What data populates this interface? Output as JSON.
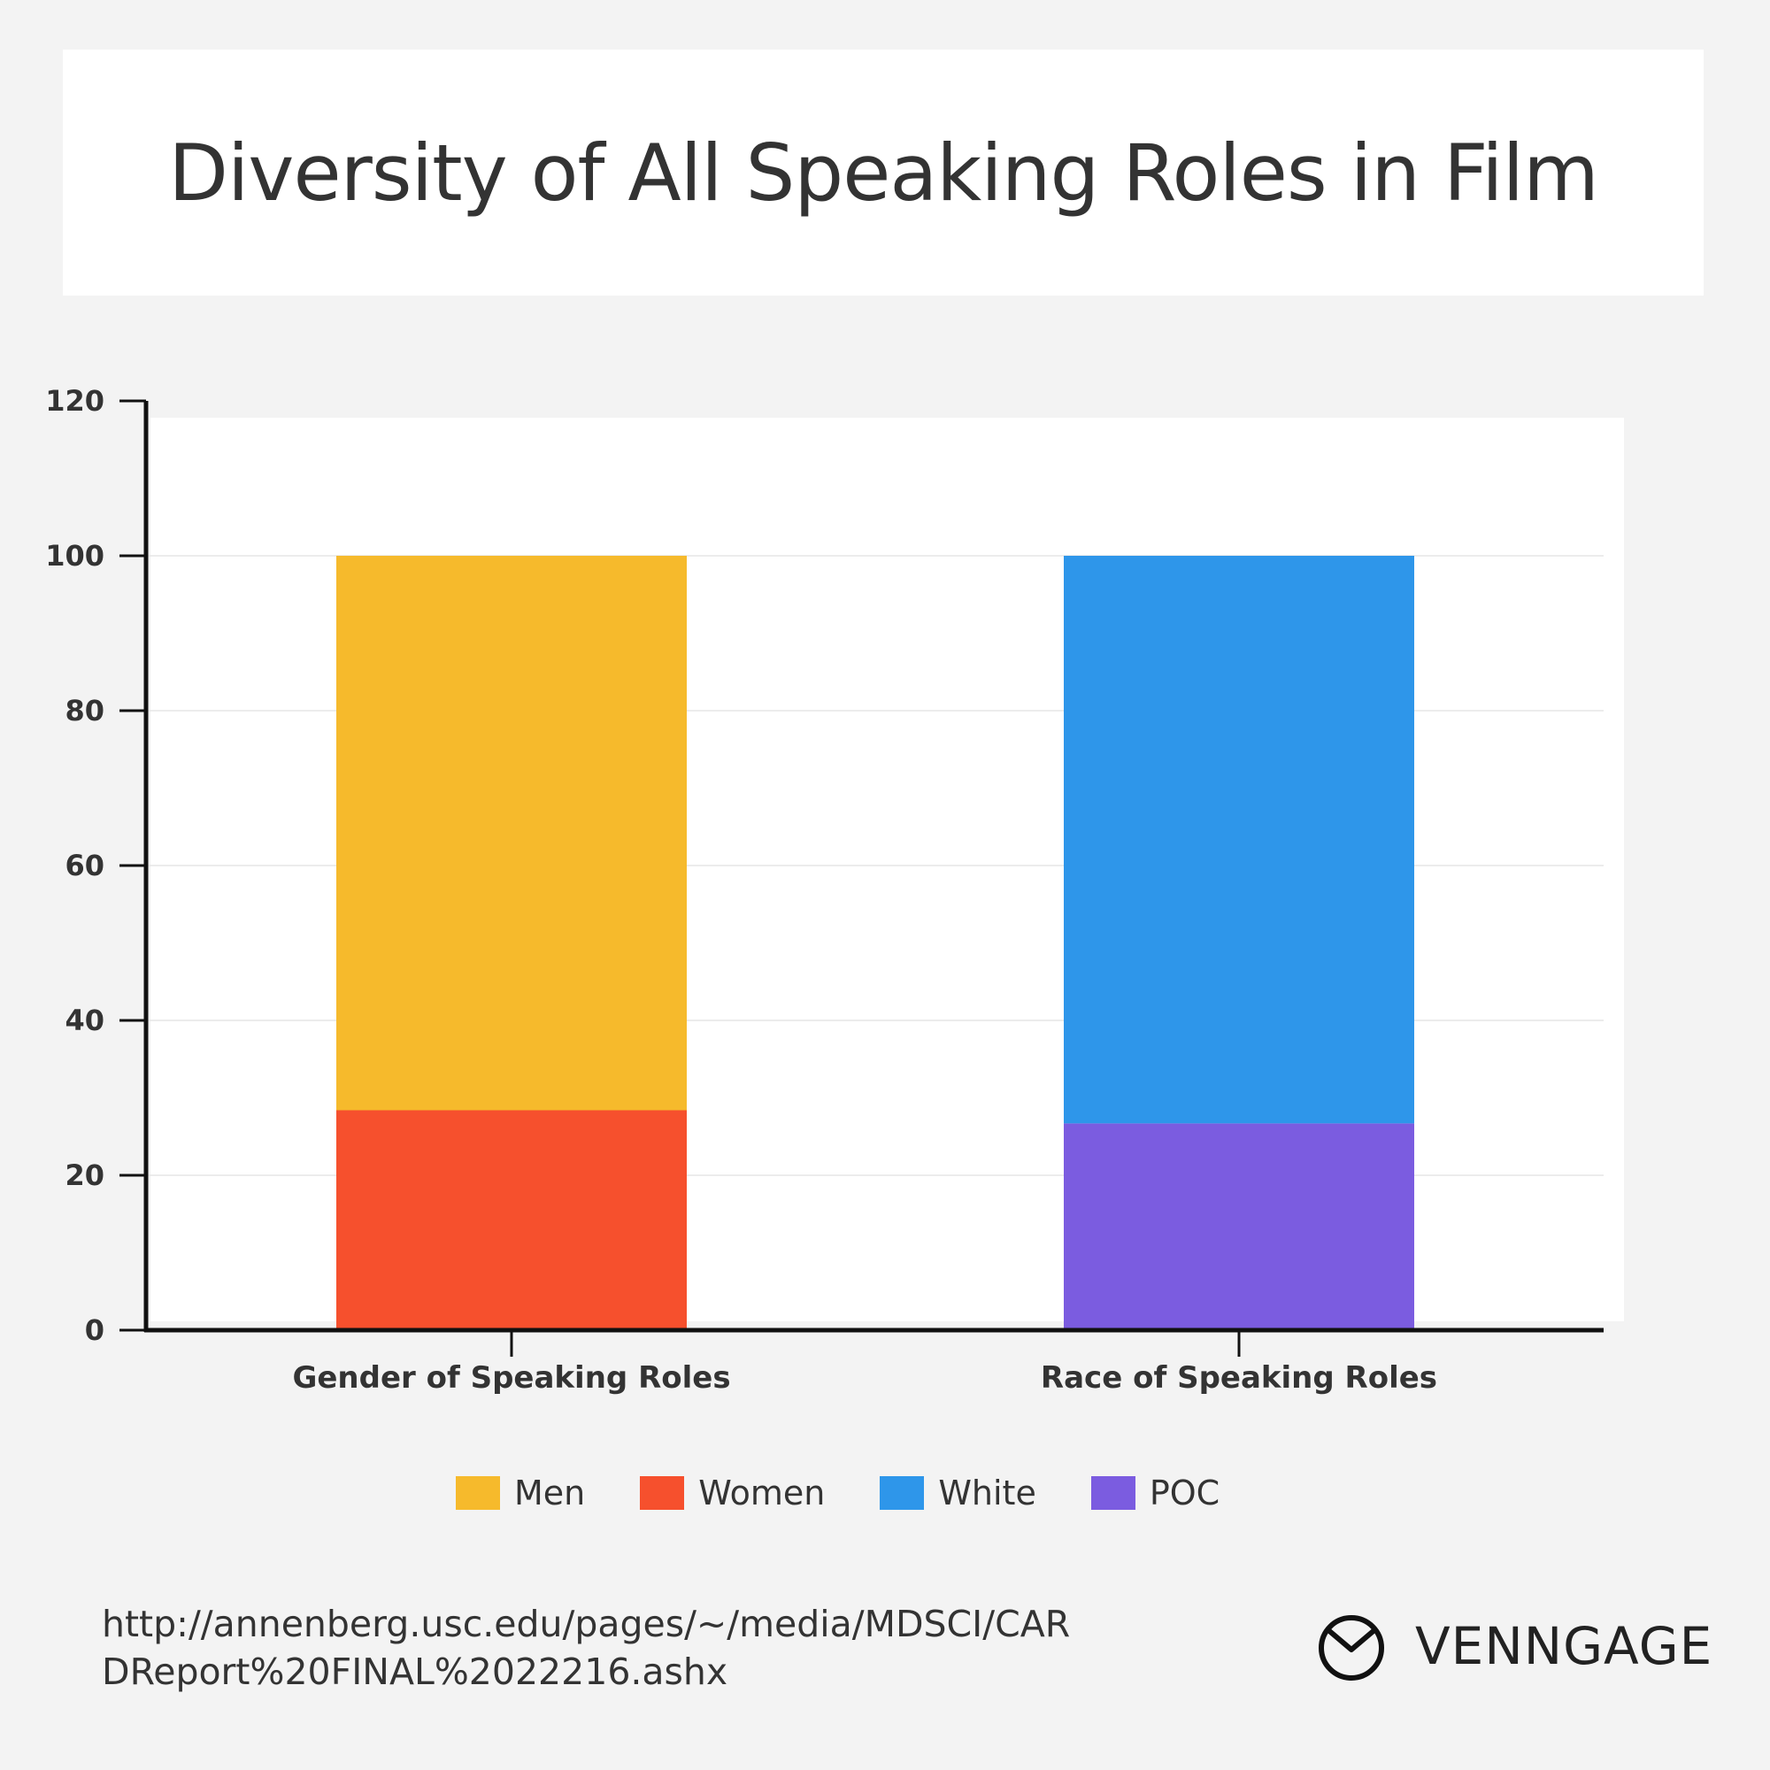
{
  "page": {
    "title": "Diversity of All Speaking Roles in Film",
    "source": "http://annenberg.usc.edu/pages/~/media/MDSCI/CARDReport%20FINAL%2022216.ashx",
    "brand": "VENNGAGE",
    "brand_icon": "venngage-logo-icon"
  },
  "chart_data": {
    "type": "bar",
    "stacked": true,
    "categories": [
      "Gender of Speaking Roles",
      "Race of Speaking Roles"
    ],
    "ylim": [
      0,
      120
    ],
    "yticks": [
      0,
      20,
      40,
      60,
      80,
      100,
      120
    ],
    "grid": true,
    "legend_position": "bottom",
    "series": [
      {
        "name": "Men",
        "color": "#f6ba2c",
        "values": [
          71.6,
          0
        ]
      },
      {
        "name": "Women",
        "color": "#f6502d",
        "values": [
          28.4,
          0
        ]
      },
      {
        "name": "White",
        "color": "#2e96ea",
        "values": [
          0,
          73.3
        ]
      },
      {
        "name": "POC",
        "color": "#7b5ce0",
        "values": [
          0,
          26.7
        ]
      }
    ],
    "stack_order": [
      "Women",
      "Men",
      "POC",
      "White"
    ]
  }
}
